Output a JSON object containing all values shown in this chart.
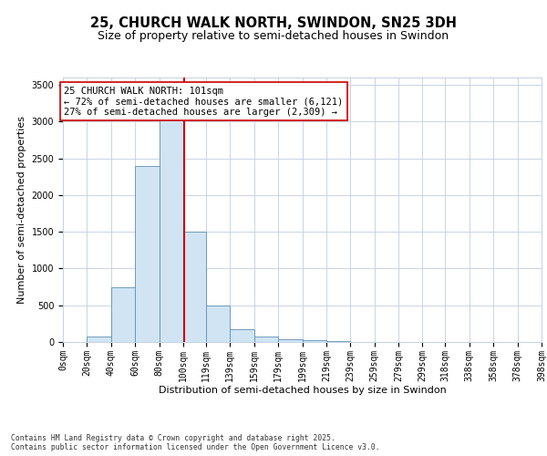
{
  "title_line1": "25, CHURCH WALK NORTH, SWINDON, SN25 3DH",
  "title_line2": "Size of property relative to semi-detached houses in Swindon",
  "xlabel": "Distribution of semi-detached houses by size in Swindon",
  "ylabel": "Number of semi-detached properties",
  "footnote": "Contains HM Land Registry data © Crown copyright and database right 2025.\nContains public sector information licensed under the Open Government Licence v3.0.",
  "bin_labels": [
    "0sqm",
    "20sqm",
    "40sqm",
    "60sqm",
    "80sqm",
    "100sqm",
    "119sqm",
    "139sqm",
    "159sqm",
    "179sqm",
    "199sqm",
    "219sqm",
    "239sqm",
    "259sqm",
    "279sqm",
    "299sqm",
    "318sqm",
    "338sqm",
    "358sqm",
    "378sqm",
    "398sqm"
  ],
  "bin_edges": [
    0,
    20,
    40,
    60,
    80,
    100,
    119,
    139,
    159,
    179,
    199,
    219,
    239,
    259,
    279,
    299,
    318,
    338,
    358,
    378,
    398
  ],
  "bar_values": [
    5,
    80,
    750,
    2400,
    3250,
    1500,
    500,
    175,
    80,
    40,
    20,
    8,
    4,
    2,
    1,
    1,
    0,
    0,
    0,
    0
  ],
  "bar_color": "#d0e4f4",
  "bar_edge_color": "#6090b0",
  "property_size": 101,
  "vline_color": "#cc0000",
  "annotation_text": "25 CHURCH WALK NORTH: 101sqm\n← 72% of semi-detached houses are smaller (6,121)\n27% of semi-detached houses are larger (2,309) →",
  "annotation_box_color": "#ffffff",
  "annotation_box_edge": "#cc0000",
  "ylim": [
    0,
    3600
  ],
  "yticks": [
    0,
    500,
    1000,
    1500,
    2000,
    2500,
    3000,
    3500
  ],
  "background_color": "#ffffff",
  "grid_color": "#c8d4e4",
  "title_fontsize": 10.5,
  "subtitle_fontsize": 9,
  "axis_label_fontsize": 8,
  "tick_fontsize": 7,
  "annotation_fontsize": 7.5,
  "footnote_fontsize": 5.8
}
